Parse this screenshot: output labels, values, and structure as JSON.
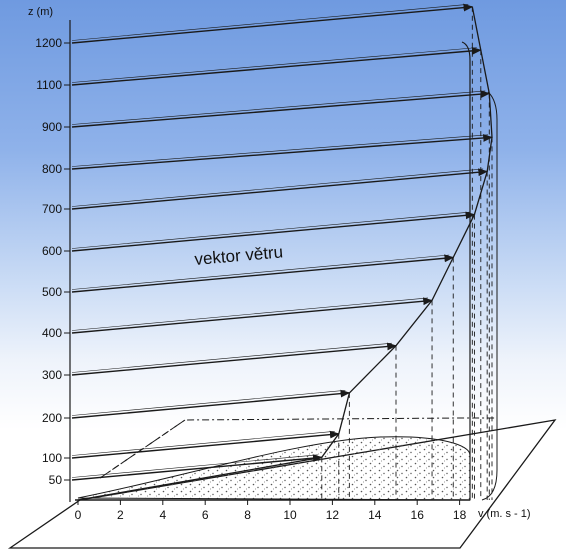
{
  "diagram": {
    "label": "vektor větru",
    "z_axis_label": "z (m)",
    "v_axis_label": "v (m. s - 1)",
    "z_ticks": [
      "1200",
      "1100",
      "900",
      "800",
      "700",
      "600",
      "500",
      "400",
      "300",
      "200",
      "100",
      "50"
    ],
    "v_ticks": [
      "0",
      "2",
      "4",
      "6",
      "8",
      "10",
      "12",
      "14",
      "16",
      "18"
    ],
    "wind_profile": [
      {
        "z": 50,
        "v": 11.5
      },
      {
        "z": 100,
        "v": 12.3
      },
      {
        "z": 200,
        "v": 12.8
      },
      {
        "z": 300,
        "v": 15.0
      },
      {
        "z": 400,
        "v": 16.7
      },
      {
        "z": 500,
        "v": 17.7
      },
      {
        "z": 600,
        "v": 18.7
      },
      {
        "z": 700,
        "v": 19.3
      },
      {
        "z": 800,
        "v": 19.6
      },
      {
        "z": 900,
        "v": 19.4
      },
      {
        "z": 1100,
        "v": 19.0
      },
      {
        "z": 1200,
        "v": 18.6
      }
    ],
    "colors": {
      "ink": "#1a1a1a",
      "sky_top": "#6f9ae0",
      "ground_dots": "#555555"
    }
  }
}
